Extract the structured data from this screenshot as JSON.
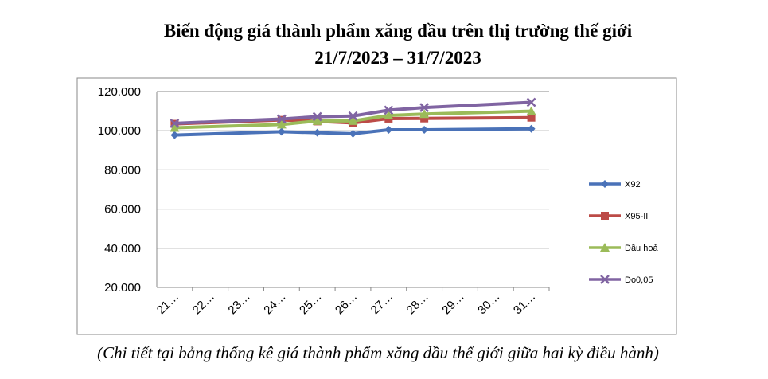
{
  "chart_data": {
    "type": "line",
    "title": "Biến động giá thành phẩm xăng dầu trên thị trường thế giới",
    "subtitle": "21/7/2023 – 31/7/2023",
    "caption": "(Chi tiết tại bảng thống kê giá thành phẩm xăng dầu thế giới giữa hai kỳ điều hành)",
    "categories": [
      "21…",
      "22…",
      "23…",
      "24…",
      "25…",
      "26…",
      "27…",
      "28…",
      "29…",
      "30…",
      "31…"
    ],
    "series": [
      {
        "name": "X92",
        "color": "#4a72b8",
        "marker": "diamond",
        "values": [
          97800,
          null,
          null,
          99500,
          99000,
          98500,
          100500,
          100500,
          null,
          null,
          101000
        ]
      },
      {
        "name": "X95-II",
        "color": "#bc4b47",
        "marker": "square",
        "values": [
          103500,
          null,
          null,
          105500,
          104800,
          104000,
          106200,
          106300,
          null,
          null,
          106700
        ]
      },
      {
        "name": "Dầu hoả",
        "color": "#9bbb59",
        "marker": "triangle",
        "values": [
          101500,
          null,
          null,
          103200,
          105000,
          105000,
          107800,
          108500,
          null,
          null,
          110000
        ]
      },
      {
        "name": "Do0,05",
        "color": "#8064a2",
        "marker": "x",
        "values": [
          103800,
          null,
          null,
          106000,
          107200,
          107500,
          110500,
          111800,
          null,
          null,
          114500
        ]
      }
    ],
    "ylim": [
      20000,
      120000
    ],
    "yticks": [
      {
        "value": 20000,
        "label": "20.000"
      },
      {
        "value": 40000,
        "label": "40.000"
      },
      {
        "value": 60000,
        "label": "60.000"
      },
      {
        "value": 80000,
        "label": "80.000"
      },
      {
        "value": 100000,
        "label": "100.000"
      },
      {
        "value": 120000,
        "label": "120.000"
      }
    ],
    "grid": true,
    "legend": "right"
  }
}
